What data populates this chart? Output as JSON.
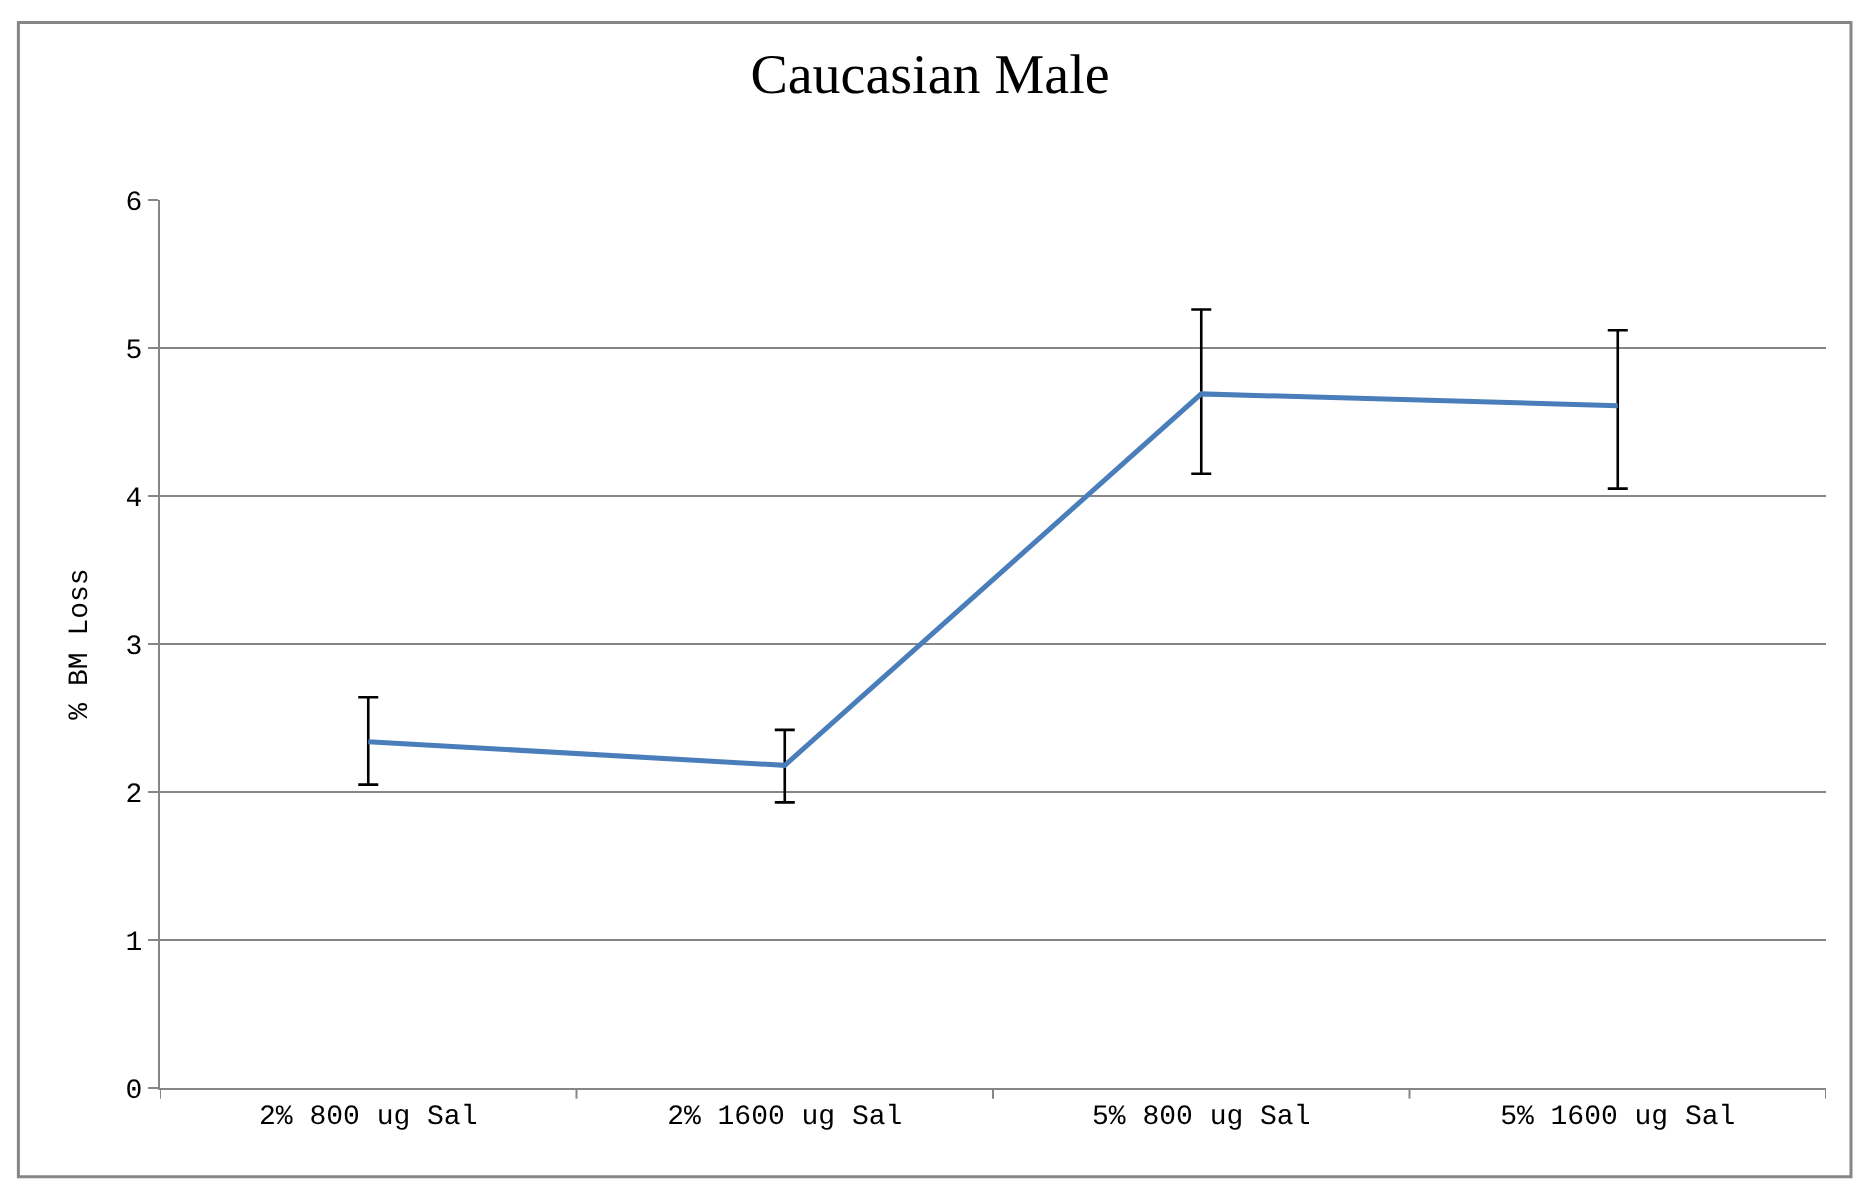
{
  "chart_data": {
    "type": "line",
    "title": "Caucasian Male",
    "ylabel": "% BM Loss",
    "categories": [
      "2% 800 ug Sal",
      "2% 1600 ug Sal",
      "5% 800 ug Sal",
      "5% 1600 ug Sal"
    ],
    "series": [
      {
        "color": "#4a7ebb",
        "values": [
          2.34,
          2.18,
          4.69,
          4.61
        ],
        "errors": [
          [
            2.05,
            2.64
          ],
          [
            1.93,
            2.42
          ],
          [
            4.15,
            5.26
          ],
          [
            4.05,
            5.12
          ]
        ]
      }
    ],
    "ylim": [
      0,
      6
    ],
    "yticks": [
      0,
      1,
      2,
      3,
      4,
      5,
      6
    ],
    "grid": "y",
    "marker": "none",
    "line_style": "solid"
  }
}
